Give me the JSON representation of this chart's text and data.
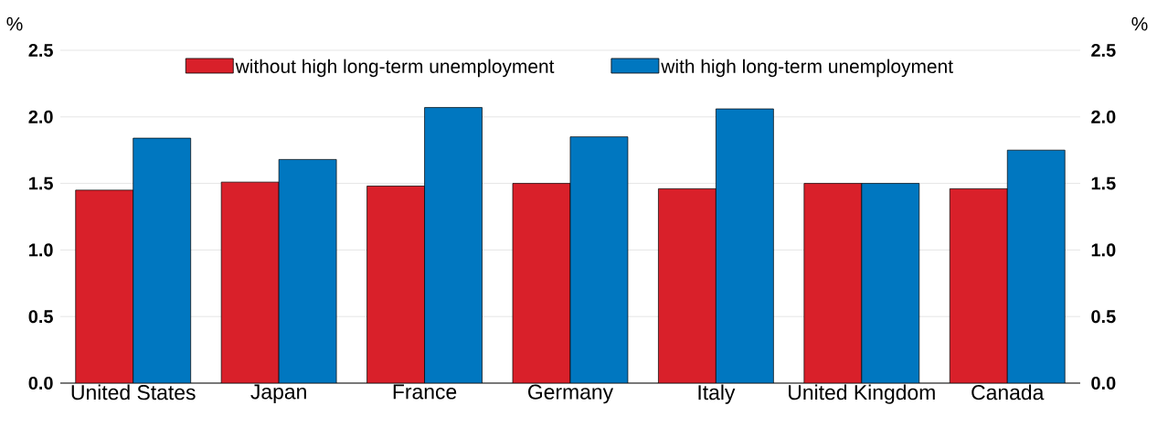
{
  "chart_data": {
    "type": "bar",
    "ylabel": "%",
    "y2label": "%",
    "categories": [
      "United States",
      "Japan",
      "France",
      "Germany",
      "Italy",
      "United Kingdom",
      "Canada"
    ],
    "series": [
      {
        "name": "without high long-term unemployment",
        "color": "#d9202a",
        "values": [
          1.45,
          1.51,
          1.48,
          1.5,
          1.46,
          1.5,
          1.46
        ]
      },
      {
        "name": "with high long-term unemployment",
        "color": "#0077c0",
        "values": [
          1.84,
          1.68,
          2.07,
          1.85,
          2.06,
          1.5,
          1.75
        ]
      }
    ],
    "ylim": [
      0,
      2.5
    ],
    "yticks": [
      {
        "value": 0,
        "label": "0.0"
      },
      {
        "value": 0.5,
        "label": "0.5"
      },
      {
        "value": 1,
        "label": "1.0"
      },
      {
        "value": 1.5,
        "label": "1.5"
      },
      {
        "value": 2,
        "label": "2.0"
      },
      {
        "value": 2.5,
        "label": "2.5"
      }
    ],
    "y2lim": [
      0,
      2.5
    ],
    "y2ticks": [
      {
        "value": 0,
        "label": "0.0"
      },
      {
        "value": 0.5,
        "label": "0.5"
      },
      {
        "value": 1,
        "label": "1.0"
      },
      {
        "value": 1.5,
        "label": "1.5"
      },
      {
        "value": 2,
        "label": "2.0"
      },
      {
        "value": 2.5,
        "label": "2.5"
      }
    ],
    "grid": "y",
    "legend": "top"
  }
}
